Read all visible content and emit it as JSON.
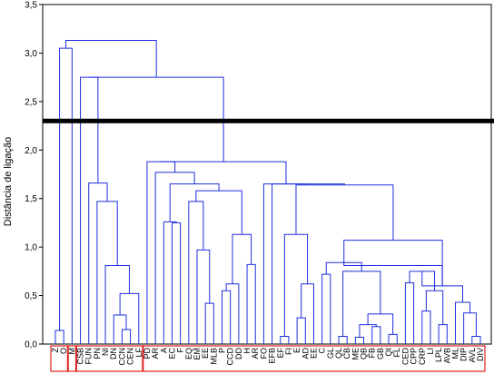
{
  "chart_data": {
    "type": "dendrogram",
    "ylabel": "Distância de ligação",
    "ylim": [
      0,
      3.5
    ],
    "yticks": [
      "0,0",
      "0,5",
      "1,0",
      "1,5",
      "2,0",
      "2,5",
      "3,0",
      "3,5"
    ],
    "grid": false,
    "cut_line": 2.3,
    "leaves": [
      "Z",
      "O",
      "M",
      "CSB",
      "FUN",
      "PN",
      "NI",
      "DN",
      "CCN",
      "CEN",
      "LF",
      "PD",
      "AR",
      "A",
      "EC",
      "F",
      "EQ",
      "EM",
      "EE",
      "MLB",
      "P",
      "CCD",
      "DD",
      "H",
      "AR",
      "FO",
      "EFB",
      "EF",
      "FI",
      "E",
      "AD",
      "EE",
      "C",
      "GL",
      "QL",
      "CB",
      "ME",
      "QB",
      "FB",
      "GB",
      "QI",
      "FL",
      "CED",
      "CPP",
      "CRP",
      "LI",
      "LPL",
      "AVB",
      "ML",
      "DIP",
      "AVL",
      "DIV"
    ],
    "merges": [
      {
        "a": "L:9",
        "b": "L:8",
        "h": 0.15
      },
      {
        "a": "N:0",
        "b": "L:7",
        "h": 0.3
      },
      {
        "a": "N:1",
        "b": "L:10",
        "h": 0.52
      },
      {
        "a": "L:6",
        "b": "N:2",
        "h": 0.81
      },
      {
        "a": "L:5",
        "b": "N:3",
        "h": 1.47
      },
      {
        "a": "L:4",
        "b": "N:4",
        "h": 1.66
      },
      {
        "a": "L:3",
        "b": "N:5",
        "h": 2.75
      },
      {
        "a": "L:0",
        "b": "L:1",
        "h": 0.14
      },
      {
        "a": "N:7",
        "b": "L:2",
        "h": 3.05
      },
      {
        "a": "L:20",
        "b": "L:21",
        "h": 0.55
      },
      {
        "a": "N:9",
        "b": "L:22",
        "h": 0.62
      },
      {
        "a": "L:23",
        "b": "L:24",
        "h": 0.82
      },
      {
        "a": "N:10",
        "b": "N:11",
        "h": 1.13
      },
      {
        "a": "L:18",
        "b": "L:19",
        "h": 0.42
      },
      {
        "a": "L:17",
        "b": "N:13",
        "h": 0.97
      },
      {
        "a": "L:16",
        "b": "N:14",
        "h": 1.47
      },
      {
        "a": "N:15",
        "b": "N:12",
        "h": 1.58
      },
      {
        "a": "L:14",
        "b": "L:15",
        "h": 1.25
      },
      {
        "a": "L:13",
        "b": "N:17",
        "h": 1.26
      },
      {
        "a": "N:18",
        "b": "N:16",
        "h": 1.65
      },
      {
        "a": "L:12",
        "b": "N:19",
        "h": 1.77
      },
      {
        "a": "L:11",
        "b": "N:20",
        "h": 1.88
      },
      {
        "a": "L:27",
        "b": "L:28",
        "h": 0.08
      },
      {
        "a": "L:29",
        "b": "L:30",
        "h": 0.27
      },
      {
        "a": "N:23",
        "b": "L:31",
        "h": 0.62
      },
      {
        "a": "N:22",
        "b": "N:24",
        "h": 1.13
      },
      {
        "a": "L:32",
        "b": "L:33",
        "h": 0.72
      },
      {
        "a": "L:34",
        "b": "L:35",
        "h": 0.08
      },
      {
        "a": "L:36",
        "b": "L:37",
        "h": 0.07
      },
      {
        "a": "L:38",
        "b": "L:39",
        "h": 0.18
      },
      {
        "a": "N:28",
        "b": "N:29",
        "h": 0.2
      },
      {
        "a": "L:40",
        "b": "L:41",
        "h": 0.1
      },
      {
        "a": "N:30",
        "b": "N:31",
        "h": 0.31
      },
      {
        "a": "N:27",
        "b": "N:32",
        "h": 0.75
      },
      {
        "a": "N:26",
        "b": "N:33",
        "h": 0.84
      },
      {
        "a": "L:44",
        "b": "L:45",
        "h": 0.34
      },
      {
        "a": "L:46",
        "b": "L:47",
        "h": 0.2
      },
      {
        "a": "N:35",
        "b": "N:36",
        "h": 0.55
      },
      {
        "a": "L:42",
        "b": "L:43",
        "h": 0.63
      },
      {
        "a": "N:38",
        "b": "N:37",
        "h": 0.75
      },
      {
        "a": "L:50",
        "b": "L:51",
        "h": 0.08
      },
      {
        "a": "L:49",
        "b": "N:40",
        "h": 0.32
      },
      {
        "a": "L:48",
        "b": "N:41",
        "h": 0.43
      },
      {
        "a": "N:39",
        "b": "N:42",
        "h": 0.6
      },
      {
        "a": "N:34",
        "b": "N:43",
        "h": 0.81
      },
      {
        "a": "N:44",
        "b": "N:44",
        "h": 0.81
      },
      {
        "a": "N:45",
        "b": "N:45",
        "h": 0.81
      },
      {
        "a": "N:34",
        "b": "N:43",
        "h": 1.07
      },
      {
        "a": "N:25",
        "b": "N:47",
        "h": 1.64
      },
      {
        "a": "L:26",
        "b": "N:48",
        "h": 1.65
      },
      {
        "a": "L:25",
        "b": "N:49",
        "h": 1.65
      },
      {
        "a": "N:21",
        "b": "N:50",
        "h": 1.88
      },
      {
        "a": "N:6",
        "b": "N:51",
        "h": 2.75
      },
      {
        "a": "N:8",
        "b": "N:52",
        "h": 3.13
      }
    ]
  }
}
